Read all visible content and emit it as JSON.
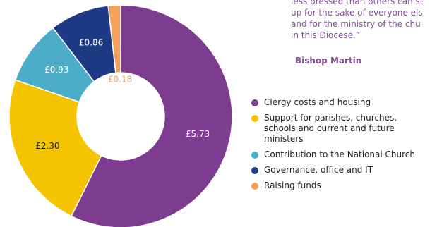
{
  "chart_data": {
    "type": "donut",
    "quote": [
      "less pressed than others can st",
      "up for the sake of everyone els",
      "and for the ministry of the chu",
      "in this Diocese.”"
    ],
    "attribution": "Bishop Martin",
    "categories": [
      "Clergy costs and housing",
      "Support for parishes, churches, schools and current and future ministers",
      "Contribution to the National Church",
      "Governance, office and IT",
      "Raising funds"
    ],
    "values": [
      5.73,
      2.3,
      0.93,
      0.86,
      0.18
    ],
    "value_labels": [
      "£5.73",
      "£2.30",
      "£0.93",
      "£0.86",
      "£0.18"
    ],
    "colors": [
      "#7d3c8f",
      "#f5c400",
      "#4cadc9",
      "#1f3a85",
      "#f2a05c"
    ],
    "label_colors": [
      "#ffffff",
      "#1a1a1a",
      "#ffffff",
      "#ffffff",
      "#f2a05c"
    ],
    "legend": "right"
  }
}
